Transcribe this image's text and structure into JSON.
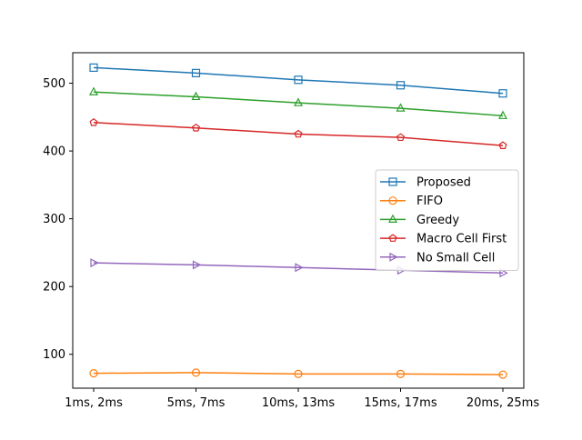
{
  "chart_data": {
    "type": "line",
    "title": "",
    "xlabel": "",
    "ylabel": "",
    "categories": [
      "1ms, 2ms",
      "5ms, 7ms",
      "10ms, 13ms",
      "15ms, 17ms",
      "20ms, 25ms"
    ],
    "ylim": [
      50,
      545
    ],
    "yticks": [
      100,
      200,
      300,
      400,
      500
    ],
    "grid": false,
    "legend_position": "center-right",
    "series": [
      {
        "name": "Proposed",
        "color": "#1f77b4",
        "marker": "square",
        "values": [
          523,
          515,
          505,
          497,
          485
        ]
      },
      {
        "name": "FIFO",
        "color": "#ff7f0e",
        "marker": "circle",
        "values": [
          72,
          73,
          71,
          71,
          70
        ]
      },
      {
        "name": "Greedy",
        "color": "#2ca02c",
        "marker": "triangle-up",
        "values": [
          487,
          480,
          471,
          463,
          452
        ]
      },
      {
        "name": "Macro Cell First",
        "color": "#d62728",
        "marker": "pentagon",
        "values": [
          442,
          434,
          425,
          420,
          408
        ]
      },
      {
        "name": "No Small Cell",
        "color": "#9467bd",
        "marker": "triangle-right",
        "values": [
          235,
          232,
          228,
          224,
          220
        ]
      }
    ]
  }
}
